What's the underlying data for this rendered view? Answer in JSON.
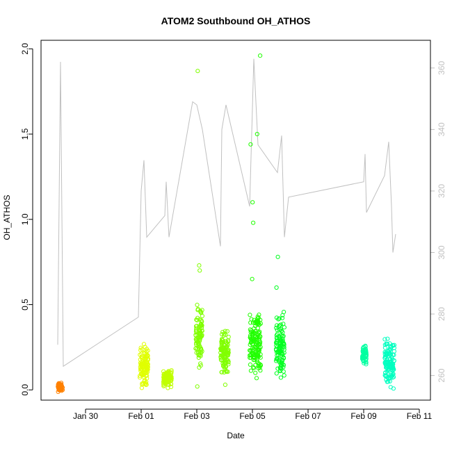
{
  "chart_data": {
    "type": "scatter",
    "title": "ATOM2 Southbound OH_ATHOS",
    "xlabel": "Date",
    "ylabel": "OH_ATHOS",
    "x_ticks": [
      "Jan 30",
      "Feb 01",
      "Feb 03",
      "Feb 05",
      "Feb 07",
      "Feb 09",
      "Feb 11"
    ],
    "x_tick_days": [
      30,
      32,
      34,
      36,
      38,
      40,
      42
    ],
    "xlim_days": [
      28.4,
      42.4
    ],
    "y_ticks": [
      "0.0",
      "0.5",
      "1.0",
      "1.5",
      "2.0"
    ],
    "ylim": [
      -0.06,
      2.05
    ],
    "y2_ticks": [
      "260",
      "280",
      "300",
      "320",
      "340",
      "360"
    ],
    "y2lim": [
      252,
      369
    ],
    "grid": false,
    "colors": {
      "axis": "#000000",
      "secondary": "#c0c0c0"
    },
    "series": [
      {
        "start_day": 29.0,
        "end_day": 29.18,
        "y_min": -0.02,
        "y_max": 0.05,
        "color": "#ff8000",
        "outliers": []
      },
      {
        "start_day": 31.95,
        "end_day": 32.25,
        "y_min": -0.02,
        "y_max": 0.3,
        "color": "#e0ff00",
        "outliers": []
      },
      {
        "start_day": 32.8,
        "end_day": 33.1,
        "y_min": 0.0,
        "y_max": 0.14,
        "color": "#c0ff00",
        "outliers": []
      },
      {
        "start_day": 33.95,
        "end_day": 34.2,
        "y_min": 0.1,
        "y_max": 0.55,
        "color": "#80ff00",
        "outliers": [
          0.02,
          0.7,
          0.73,
          1.87
        ]
      },
      {
        "start_day": 34.85,
        "end_day": 35.15,
        "y_min": 0.06,
        "y_max": 0.38,
        "color": "#80ff00",
        "outliers": [
          0.03
        ]
      },
      {
        "start_day": 35.9,
        "end_day": 36.3,
        "y_min": 0.02,
        "y_max": 0.52,
        "color": "#20ff00",
        "outliers": [
          0.65,
          0.98,
          1.1,
          1.44,
          1.5,
          1.96
        ]
      },
      {
        "start_day": 36.85,
        "end_day": 37.15,
        "y_min": -0.03,
        "y_max": 0.5,
        "color": "#00ff20",
        "outliers": [
          0.6,
          0.78
        ]
      },
      {
        "start_day": 39.95,
        "end_day": 40.1,
        "y_min": 0.12,
        "y_max": 0.3,
        "color": "#00ffa0",
        "outliers": []
      },
      {
        "start_day": 40.75,
        "end_day": 41.1,
        "y_min": -0.02,
        "y_max": 0.33,
        "color": "#00ffc0",
        "outliers": []
      }
    ],
    "secondary_line": {
      "color": "#c0c0c0",
      "y2_axis": true,
      "points": [
        [
          29.0,
          270
        ],
        [
          29.1,
          362
        ],
        [
          29.2,
          263
        ],
        [
          31.9,
          279
        ],
        [
          32.0,
          320
        ],
        [
          32.1,
          330
        ],
        [
          32.2,
          305
        ],
        [
          32.85,
          312
        ],
        [
          32.9,
          323
        ],
        [
          33.0,
          305
        ],
        [
          33.85,
          349
        ],
        [
          34.0,
          348
        ],
        [
          34.2,
          340
        ],
        [
          34.85,
          302
        ],
        [
          34.9,
          340
        ],
        [
          35.05,
          348
        ],
        [
          35.9,
          315
        ],
        [
          36.05,
          363
        ],
        [
          36.2,
          335
        ],
        [
          36.9,
          326
        ],
        [
          37.05,
          338
        ],
        [
          37.15,
          305
        ],
        [
          37.3,
          318
        ],
        [
          40.0,
          323
        ],
        [
          40.05,
          332
        ],
        [
          40.1,
          313
        ],
        [
          40.75,
          325
        ],
        [
          40.9,
          336
        ],
        [
          41.0,
          315
        ],
        [
          41.05,
          300
        ],
        [
          41.15,
          306
        ]
      ]
    }
  }
}
